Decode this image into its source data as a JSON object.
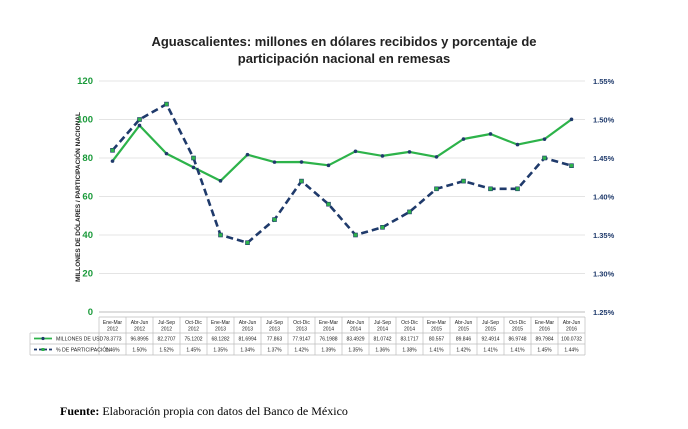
{
  "title_line1": "Aguascalientes: millones en dólares recibidos y porcentaje  de",
  "title_line2": "participación nacional en remesas",
  "source_label": "Fuente:",
  "source_text": " Elaboración propia con datos del Banco de México",
  "chart_data": {
    "type": "line",
    "title": "Aguascalientes: millones en dólares recibidos y porcentaje  de participación nacional en remesas",
    "ylabel": "MILLONES DE DÓLARES / PARTICIPACIÓN NACIONAL",
    "ylim": [
      0,
      120
    ],
    "yticks": [
      "0",
      "20",
      "40",
      "60",
      "80",
      "100",
      "120"
    ],
    "y2lim": [
      1.25,
      1.55
    ],
    "y2ticks": [
      "1.25%",
      "1.30%",
      "1.35%",
      "1.40%",
      "1.45%",
      "1.50%",
      "1.55%"
    ],
    "categories": [
      [
        "Ene-Mar",
        "2012"
      ],
      [
        "Abr-Jun",
        "2012"
      ],
      [
        "Jul-Sep",
        "2012"
      ],
      [
        "Oct-Dic",
        "2012"
      ],
      [
        "Ene-Mar",
        "2013"
      ],
      [
        "Abr-Jun",
        "2013"
      ],
      [
        "Jul-Sep",
        "2013"
      ],
      [
        "Oct-Dic",
        "2013"
      ],
      [
        "Ene-Mar",
        "2014"
      ],
      [
        "Abr-Jun",
        "2014"
      ],
      [
        "Jul-Sep",
        "2014"
      ],
      [
        "Oct-Dic",
        "2014"
      ],
      [
        "Ene-Mar",
        "2015"
      ],
      [
        "Abr-Jun",
        "2015"
      ],
      [
        "Jul-Sep",
        "2015"
      ],
      [
        "Oct-Dic",
        "2015"
      ],
      [
        "Ene-Mar",
        "2016"
      ],
      [
        "Abr-Jun",
        "2016"
      ]
    ],
    "series": [
      {
        "name": "MILLONES DE USD",
        "axis": "left",
        "color": "#2db34a",
        "style": "solid",
        "values": [
          78.3773,
          96.8995,
          82.2707,
          75.1202,
          68.1282,
          81.6994,
          77.863,
          77.9147,
          76.1988,
          83.4929,
          81.0742,
          83.1717,
          80.557,
          89.846,
          92.4914,
          86.9748,
          89.7984,
          100.0732
        ],
        "labels": [
          "78.3773",
          "96.8995",
          "82.2707",
          "75.1202",
          "68.1282",
          "81.6994",
          "77.863",
          "77.9147",
          "76.1988",
          "83.4929",
          "81.0742",
          "83.1717",
          "80.557",
          "89.846",
          "92.4914",
          "86.9748",
          "89.7984",
          "100.0732"
        ]
      },
      {
        "name": "% DE PARTICIPACIÓN",
        "axis": "right",
        "color": "#1f3a6b",
        "style": "dashed",
        "values": [
          1.46,
          1.5,
          1.52,
          1.45,
          1.35,
          1.34,
          1.37,
          1.42,
          1.39,
          1.35,
          1.36,
          1.38,
          1.41,
          1.42,
          1.41,
          1.41,
          1.45,
          1.44
        ],
        "labels": [
          "1.46%",
          "1.50%",
          "1.52%",
          "1.45%",
          "1.35%",
          "1.34%",
          "1.37%",
          "1.42%",
          "1.39%",
          "1.35%",
          "1.36%",
          "1.38%",
          "1.41%",
          "1.42%",
          "1.41%",
          "1.41%",
          "1.45%",
          "1.44%"
        ]
      }
    ]
  }
}
